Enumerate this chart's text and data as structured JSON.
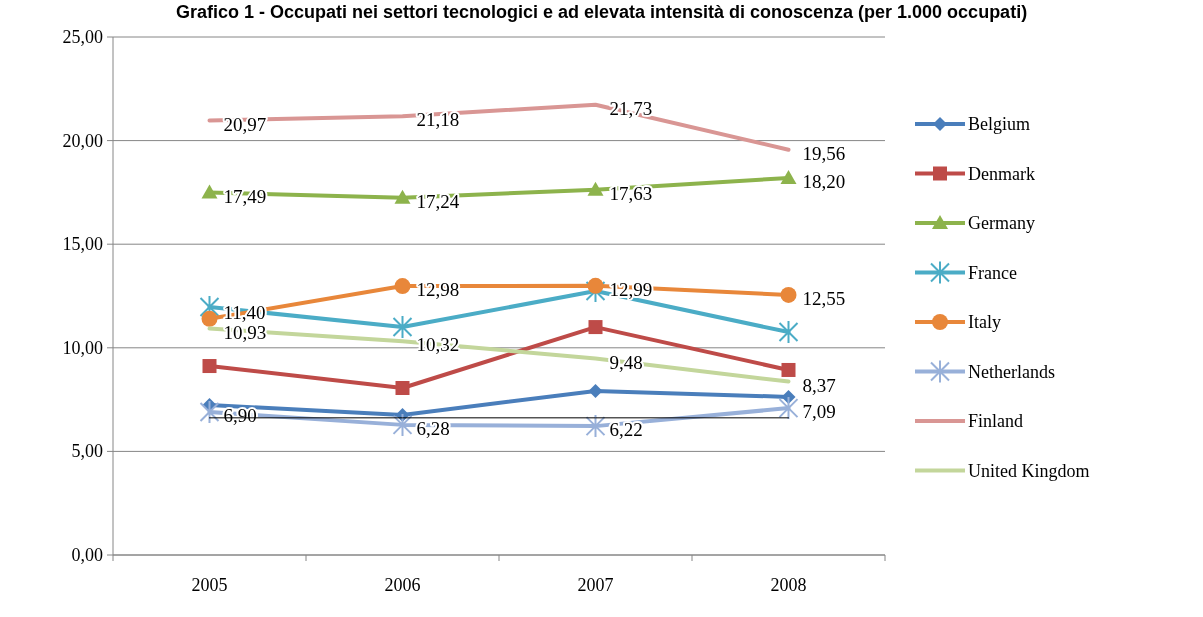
{
  "chart_data": {
    "type": "line",
    "title": "Grafico 1 - Occupati nei settori tecnologici e ad elevata intensità di conoscenza (per 1.000 occupati)",
    "categories": [
      "2005",
      "2006",
      "2007",
      "2008"
    ],
    "ylim": [
      0,
      25
    ],
    "yticks": [
      {
        "value": 0,
        "label": "0,00"
      },
      {
        "value": 5,
        "label": "5,00"
      },
      {
        "value": 10,
        "label": "10,00"
      },
      {
        "value": 15,
        "label": "15,00"
      },
      {
        "value": 20,
        "label": "20,00"
      },
      {
        "value": 25,
        "label": "25,00"
      }
    ],
    "grid": "y",
    "legend": "right",
    "series": [
      {
        "name": "Belgium",
        "color": "#4a7ebb",
        "marker": "diamond",
        "values": [
          7.24,
          6.76,
          7.92,
          7.63
        ]
      },
      {
        "name": "Denmark",
        "color": "#be4b48",
        "marker": "square",
        "values": [
          9.12,
          8.06,
          11.0,
          8.93
        ]
      },
      {
        "name": "Germany",
        "color": "#8db34c",
        "marker": "triangle",
        "values": [
          17.49,
          17.24,
          17.63,
          18.2
        ],
        "value_labels": [
          "17,49",
          "17,24",
          "17,63",
          "18,20"
        ]
      },
      {
        "name": "France",
        "color": "#4bacc6",
        "marker": "cross",
        "values": [
          11.97,
          11.0,
          12.74,
          10.76
        ]
      },
      {
        "name": "Italy",
        "color": "#e8873a",
        "marker": "circle",
        "values": [
          11.4,
          12.98,
          12.99,
          12.55
        ],
        "value_labels": [
          "11,40",
          "12,98",
          "12,99",
          "12,55"
        ]
      },
      {
        "name": "Netherlands",
        "color": "#98b0d9",
        "marker": "cross",
        "values": [
          6.9,
          6.28,
          6.22,
          7.09
        ],
        "value_labels": [
          "6,90",
          "6,28",
          "6,22",
          "7,09"
        ]
      },
      {
        "name": "Finland",
        "color": "#d99694",
        "marker": "none",
        "values": [
          20.97,
          21.18,
          21.73,
          19.56
        ],
        "value_labels": [
          "20,97",
          "21,18",
          "21,73",
          "19,56"
        ]
      },
      {
        "name": "United Kingdom",
        "color": "#c3d69b",
        "marker": "none",
        "values": [
          10.93,
          10.32,
          9.48,
          8.37
        ],
        "value_labels": [
          "10,93",
          "10,32",
          "9,48",
          "8,37"
        ]
      },
      {
        "color": "#000000",
        "marker": "none",
        "values": [
          6.62,
          6.62,
          6.62,
          6.62
        ]
      }
    ]
  }
}
